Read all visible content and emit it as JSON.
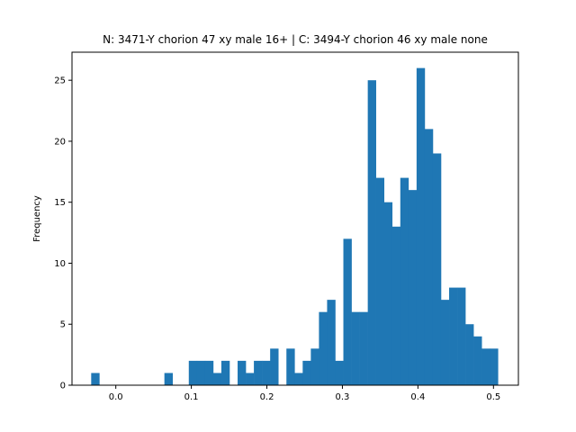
{
  "chart_data": {
    "type": "bar",
    "title": "N: 3471-Y chorion 47 xy male 16+ | C: 3494-Y chorion 46 xy male none",
    "xlabel": "",
    "ylabel": "Frequency",
    "xlim": [
      -0.058,
      0.533
    ],
    "ylim": [
      0,
      27.3
    ],
    "grid": false,
    "x_ticks": [
      0.0,
      0.1,
      0.2,
      0.3,
      0.4,
      0.5
    ],
    "x_tick_labels": [
      "0.0",
      "0.1",
      "0.2",
      "0.3",
      "0.4",
      "0.5"
    ],
    "y_ticks": [
      0,
      5,
      10,
      15,
      20,
      25
    ],
    "y_tick_labels": [
      "0",
      "5",
      "10",
      "15",
      "20",
      "25"
    ],
    "bin_start": -0.0326,
    "bin_width": 0.01077,
    "values": [
      1,
      0,
      0,
      0,
      0,
      0,
      0,
      0,
      0,
      1,
      0,
      0,
      2,
      2,
      2,
      1,
      2,
      0,
      2,
      1,
      2,
      2,
      3,
      0,
      3,
      1,
      2,
      3,
      6,
      7,
      2,
      12,
      6,
      6,
      25,
      17,
      15,
      13,
      17,
      16,
      26,
      21,
      19,
      7,
      8,
      8,
      5,
      4,
      3,
      3
    ],
    "color": "#1f77b4"
  }
}
